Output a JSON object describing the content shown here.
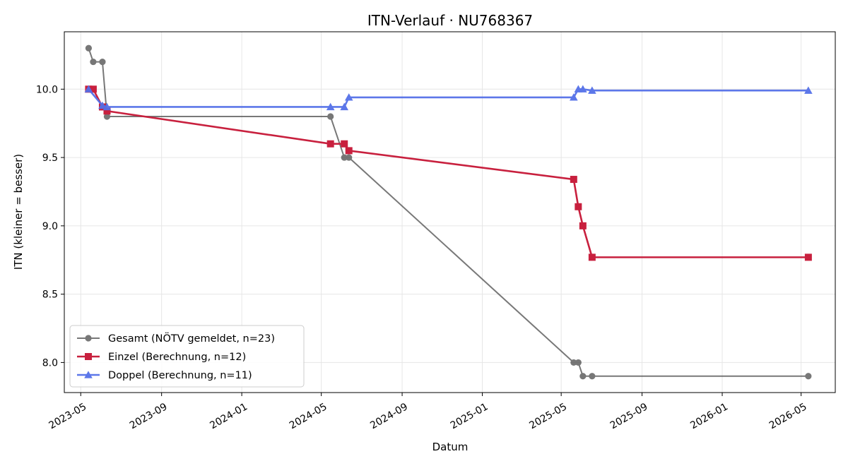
{
  "chart_data": {
    "type": "line",
    "title": "ITN-Verlauf · NU768367",
    "xlabel": "Datum",
    "ylabel": "ITN  (kleiner = besser)",
    "x_ticks": [
      "2023-05",
      "2023-09",
      "2024-01",
      "2024-05",
      "2024-09",
      "2025-01",
      "2025-05",
      "2025-09",
      "2026-01",
      "2026-05"
    ],
    "y_ticks": [
      "8.0",
      "8.5",
      "9.0",
      "9.5",
      "10.0"
    ],
    "xlim": [
      "2023-04-06",
      "2026-06-22"
    ],
    "ylim": [
      7.78,
      10.42
    ],
    "grid": true,
    "legend_position": "bottom-left",
    "series": [
      {
        "name": "Gesamt (NÖTV gemeldet, n=23)",
        "color": "#444444",
        "marker": "circle",
        "points": [
          [
            "2023-05-13",
            10.3
          ],
          [
            "2023-05-20",
            10.2
          ],
          [
            "2023-06-03",
            10.2
          ],
          [
            "2023-06-10",
            9.8
          ],
          [
            "2024-05-15",
            9.8
          ],
          [
            "2024-06-05",
            9.5
          ],
          [
            "2024-06-12",
            9.5
          ],
          [
            "2025-05-20",
            8.0
          ],
          [
            "2025-05-27",
            8.0
          ],
          [
            "2025-06-03",
            7.9
          ],
          [
            "2025-06-17",
            7.9
          ],
          [
            "2026-05-12",
            7.9
          ]
        ]
      },
      {
        "name": "Einzel (Berechnung, n=12)",
        "color": "#c8203e",
        "marker": "square",
        "points": [
          [
            "2023-05-13",
            10.0
          ],
          [
            "2023-05-20",
            10.0
          ],
          [
            "2023-06-03",
            9.87
          ],
          [
            "2023-06-10",
            9.84
          ],
          [
            "2024-05-15",
            9.6
          ],
          [
            "2024-06-05",
            9.6
          ],
          [
            "2024-06-12",
            9.55
          ],
          [
            "2025-05-20",
            9.34
          ],
          [
            "2025-05-27",
            9.14
          ],
          [
            "2025-06-03",
            9.0
          ],
          [
            "2025-06-17",
            8.77
          ],
          [
            "2026-05-12",
            8.77
          ]
        ]
      },
      {
        "name": "Doppel (Berechnung, n=11)",
        "color": "#5470e8",
        "marker": "triangle",
        "points": [
          [
            "2023-05-13",
            10.0
          ],
          [
            "2023-06-03",
            9.88
          ],
          [
            "2023-06-10",
            9.87
          ],
          [
            "2024-05-15",
            9.87
          ],
          [
            "2024-06-05",
            9.87
          ],
          [
            "2024-06-12",
            9.94
          ],
          [
            "2025-05-20",
            9.94
          ],
          [
            "2025-05-27",
            10.0
          ],
          [
            "2025-06-03",
            10.0
          ],
          [
            "2025-06-17",
            9.99
          ],
          [
            "2026-05-12",
            9.99
          ]
        ]
      }
    ]
  }
}
